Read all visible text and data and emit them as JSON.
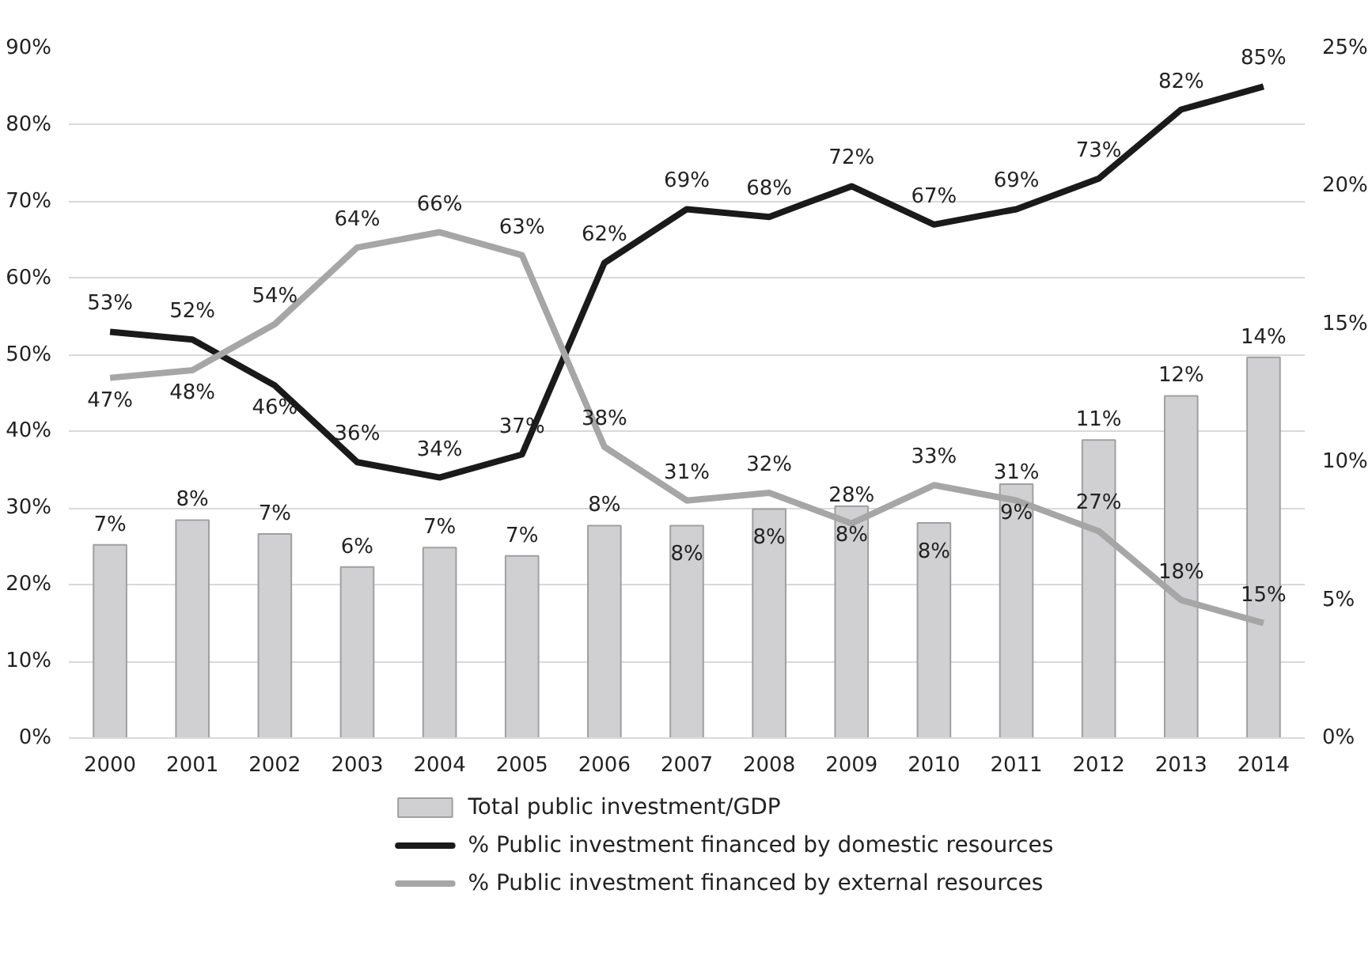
{
  "chart_data": {
    "type": "bar",
    "categories": [
      "2000",
      "2001",
      "2002",
      "2003",
      "2004",
      "2005",
      "2006",
      "2007",
      "2008",
      "2009",
      "2010",
      "2011",
      "2012",
      "2013",
      "2014"
    ],
    "series": [
      {
        "name": "Total public investment/GDP",
        "axis": "y2",
        "color": "#d0d0d2",
        "values": [
          7.0,
          7.9,
          7.4,
          6.2,
          6.9,
          6.6,
          7.7,
          7.7,
          8.3,
          8.4,
          7.8,
          9.2,
          10.8,
          12.4,
          13.8
        ],
        "value_labels": [
          "7%",
          "8%",
          "7%",
          "6%",
          "7%",
          "7%",
          "8%",
          "8%",
          "8%",
          "8%",
          "8%",
          "9%",
          "11%",
          "12%",
          "14%"
        ]
      },
      {
        "name": "% Public investment financed by domestic resources",
        "type": "line",
        "color": "#1a1a1a",
        "values": [
          53,
          52,
          46,
          36,
          34,
          37,
          62,
          69,
          68,
          72,
          67,
          69,
          73,
          82,
          85
        ],
        "value_labels": [
          "53%",
          "52%",
          "46%",
          "36%",
          "34%",
          "37%",
          "62%",
          "69%",
          "68%",
          "72%",
          "67%",
          "69%",
          "73%",
          "82%",
          "85%"
        ]
      },
      {
        "name": "% Public investment financed by external resources",
        "type": "line",
        "color": "#a6a6a6",
        "values": [
          47,
          48,
          54,
          64,
          66,
          63,
          38,
          31,
          32,
          28,
          33,
          31,
          27,
          18,
          15
        ],
        "value_labels": [
          "47%",
          "48%",
          "54%",
          "64%",
          "66%",
          "63%",
          "38%",
          "31%",
          "32%",
          "28%",
          "33%",
          "31%",
          "27%",
          "18%",
          "15%"
        ]
      }
    ],
    "ylim": [
      0,
      90
    ],
    "yticks": [
      {
        "value": 0,
        "label": "0%"
      },
      {
        "value": 10,
        "label": "10%"
      },
      {
        "value": 20,
        "label": "20%"
      },
      {
        "value": 30,
        "label": "30%"
      },
      {
        "value": 40,
        "label": "40%"
      },
      {
        "value": 50,
        "label": "50%"
      },
      {
        "value": 60,
        "label": "60%"
      },
      {
        "value": 70,
        "label": "70%"
      },
      {
        "value": 80,
        "label": "80%"
      },
      {
        "value": 90,
        "label": "90%"
      }
    ],
    "y2lim": [
      0,
      25
    ],
    "y2ticks": [
      {
        "value": 0,
        "label": "0%"
      },
      {
        "value": 5,
        "label": "5%"
      },
      {
        "value": 10,
        "label": "10%"
      },
      {
        "value": 15,
        "label": "15%"
      },
      {
        "value": 20,
        "label": "20%"
      },
      {
        "value": 25,
        "label": "25%"
      }
    ],
    "grid": "y",
    "legend": "bottom"
  }
}
